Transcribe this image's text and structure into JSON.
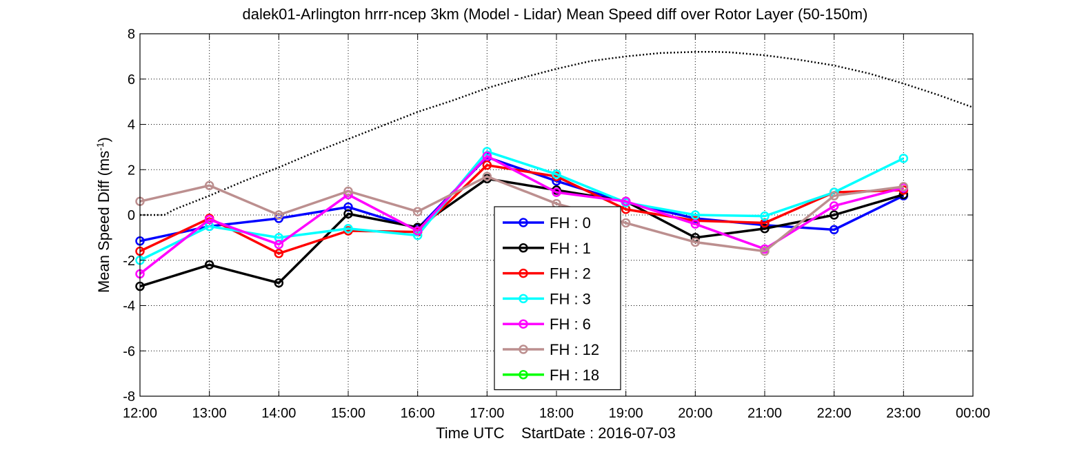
{
  "chart_data": {
    "type": "line",
    "title": "dalek01-Arlington hrrr-ncep 3km (Model - Lidar) Mean Speed diff over Rotor Layer (50-150m)",
    "xlabel": "Time UTC    StartDate : 2016-07-03",
    "ylabel_prefix": "Mean Speed Diff (ms",
    "ylabel_sup": "-1",
    "ylabel_suffix": ")",
    "x_tick_labels": [
      "12:00",
      "13:00",
      "14:00",
      "15:00",
      "16:00",
      "17:00",
      "18:00",
      "19:00",
      "20:00",
      "21:00",
      "22:00",
      "23:00",
      "00:00"
    ],
    "y_ticks": [
      8,
      6,
      4,
      2,
      0,
      -2,
      -4,
      -6,
      -8
    ],
    "ylim": [
      -8,
      8
    ],
    "grid": true,
    "legend_placement": "bottom-center",
    "series": [
      {
        "name": "FH : 0",
        "color": "#0000ff",
        "values": [
          -1.15,
          -0.5,
          -0.15,
          0.35,
          -0.6,
          2.55,
          1.5,
          0.55,
          -0.15,
          -0.45,
          -0.65,
          0.85
        ]
      },
      {
        "name": "FH : 1",
        "color": "#000000",
        "values": [
          -3.15,
          -2.2,
          -3.0,
          0.05,
          -0.55,
          1.6,
          1.1,
          0.6,
          -1.0,
          -0.6,
          0.0,
          0.9
        ]
      },
      {
        "name": "FH : 2",
        "color": "#ff0000",
        "values": [
          -1.6,
          -0.15,
          -1.7,
          -0.7,
          -0.75,
          2.2,
          1.7,
          0.25,
          -0.25,
          -0.35,
          1.0,
          1.1
        ]
      },
      {
        "name": "FH : 3",
        "color": "#00ffff",
        "values": [
          -2.0,
          -0.5,
          -1.0,
          -0.6,
          -0.9,
          2.8,
          1.8,
          0.55,
          0.0,
          -0.05,
          1.0,
          2.5
        ]
      },
      {
        "name": "FH : 6",
        "color": "#ff00ff",
        "values": [
          -2.6,
          -0.2,
          -1.3,
          0.9,
          -0.7,
          2.6,
          1.0,
          0.6,
          -0.4,
          -1.5,
          0.4,
          1.2
        ]
      },
      {
        "name": "FH : 12",
        "color": "#bc8f8f",
        "values": [
          0.6,
          1.3,
          0.0,
          1.05,
          0.15,
          1.7,
          0.5,
          -0.35,
          -1.2,
          -1.6,
          0.85,
          1.25
        ]
      },
      {
        "name": "FH : 18",
        "color": "#00ff00",
        "values": []
      }
    ],
    "reference_curve": {
      "style": "dotted",
      "color": "#000000",
      "x": [
        0.0,
        0.35,
        0.5,
        1.0,
        1.5,
        2.0,
        2.5,
        3.0,
        3.5,
        4.0,
        4.5,
        5.0,
        5.5,
        6.0,
        6.5,
        7.0,
        7.5,
        8.0,
        8.3,
        8.5,
        9.0,
        9.5,
        10.0,
        10.5,
        11.0,
        11.5,
        12.0
      ],
      "y": [
        0.0,
        0.0,
        0.25,
        0.85,
        1.5,
        2.1,
        2.75,
        3.35,
        3.95,
        4.55,
        5.05,
        5.6,
        6.05,
        6.45,
        6.8,
        7.0,
        7.15,
        7.2,
        7.2,
        7.18,
        7.05,
        6.85,
        6.6,
        6.25,
        5.8,
        5.3,
        4.75
      ]
    }
  }
}
